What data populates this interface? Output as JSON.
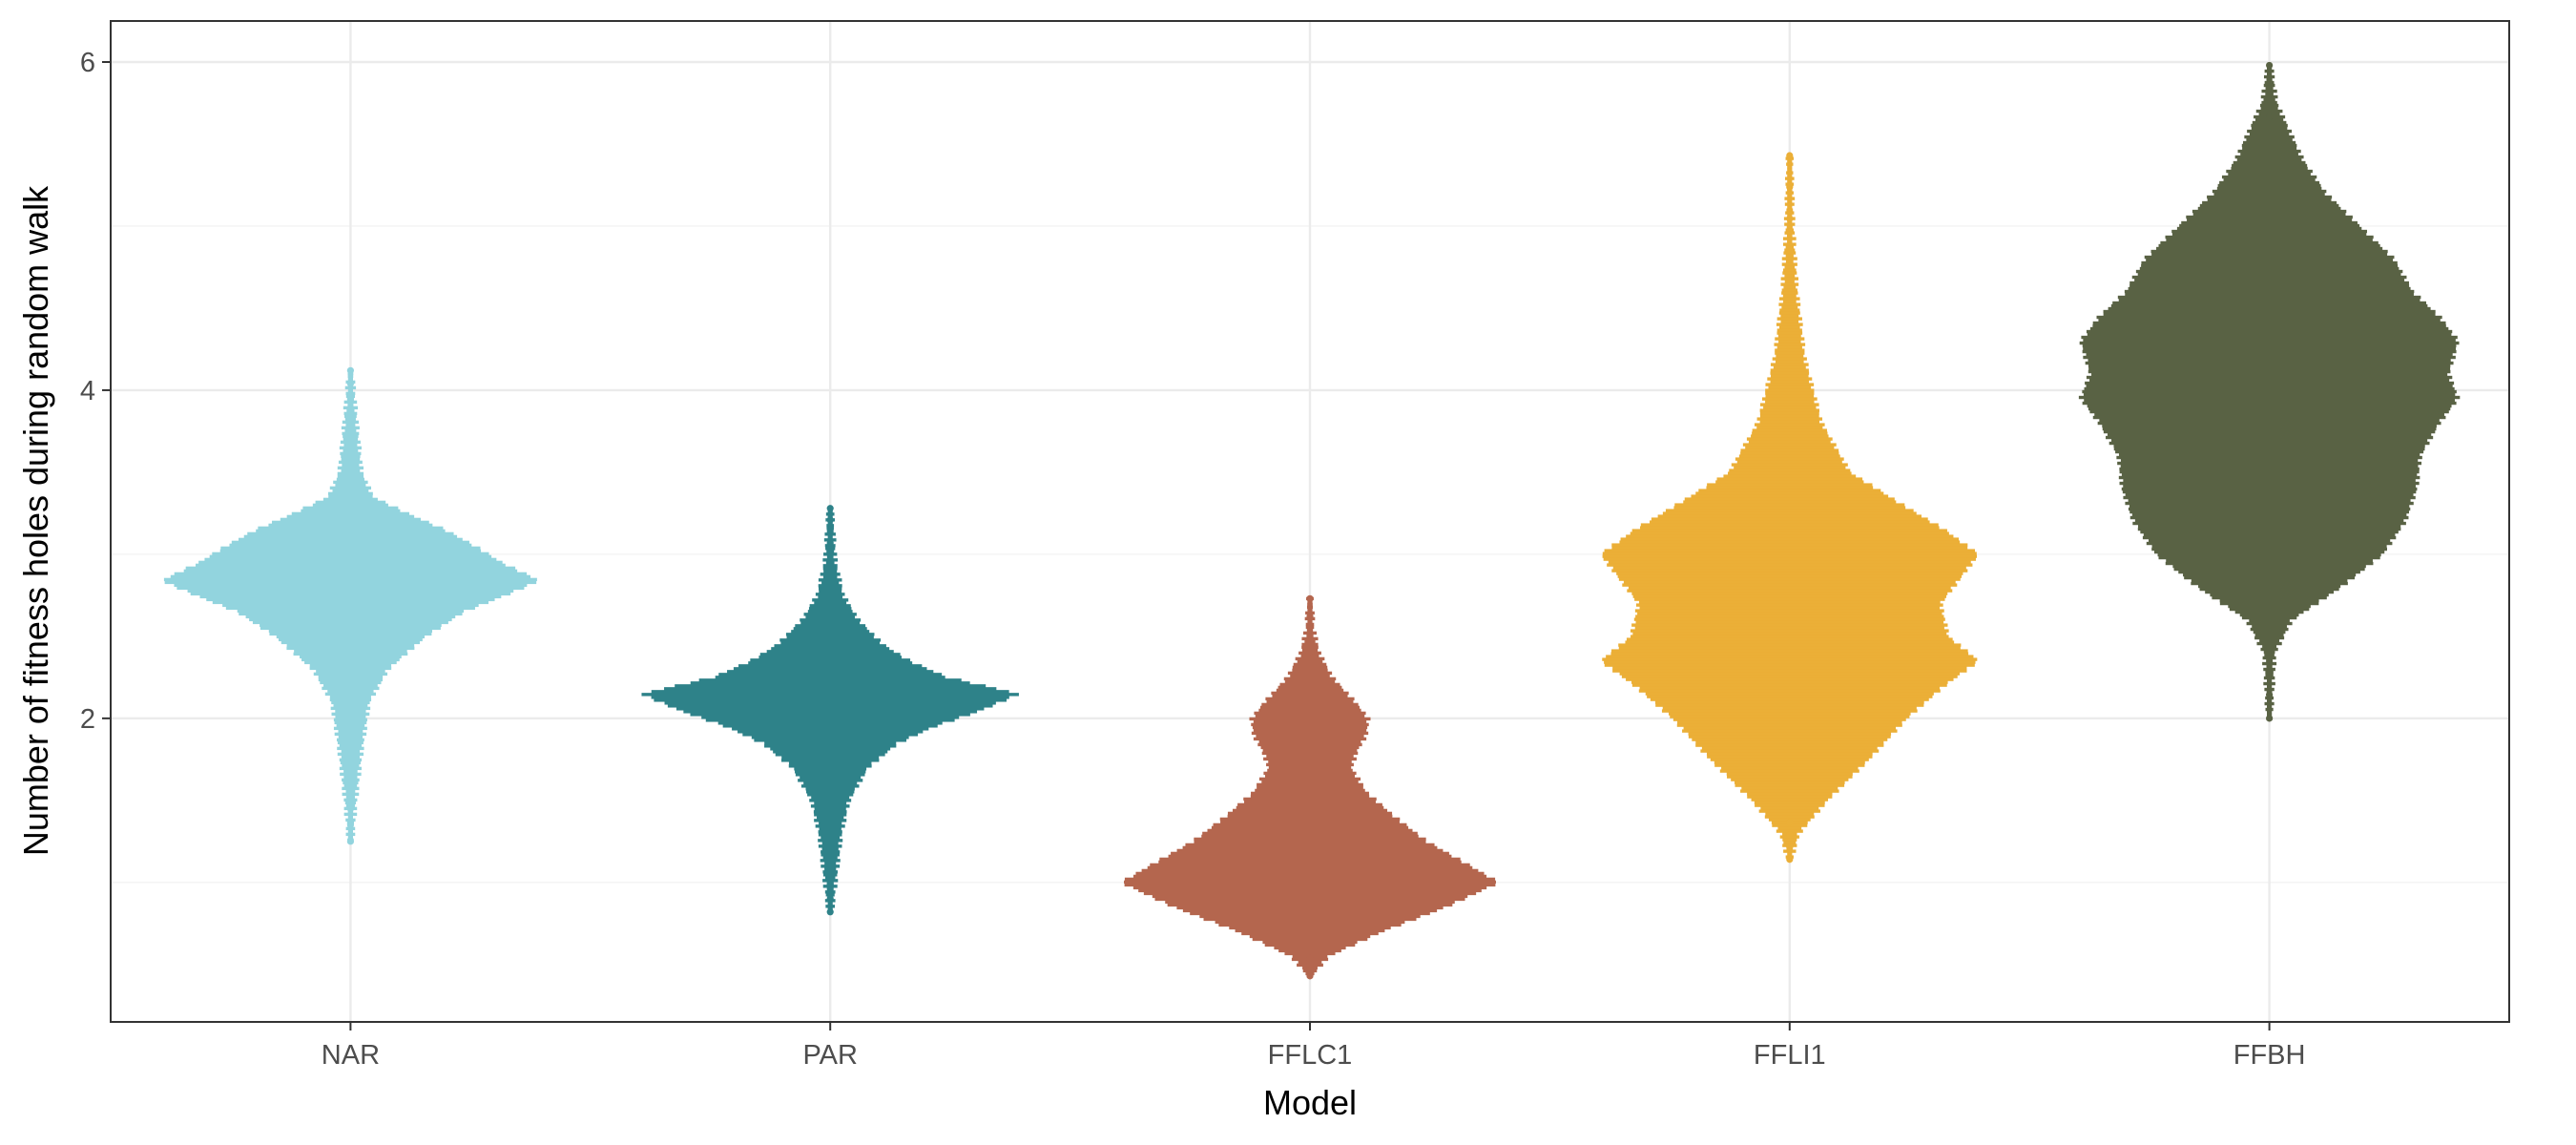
{
  "chart_data": {
    "type": "beeswarm",
    "xlabel": "Model",
    "ylabel": "Number of fitness holes during random walk",
    "categories": [
      "NAR",
      "PAR",
      "FFLC1",
      "FFLI1",
      "FFBH"
    ],
    "y_ticks": [
      2,
      4,
      6
    ],
    "ylim": [
      0.15,
      6.25
    ],
    "grid": true,
    "legend": "none",
    "series": [
      {
        "category": "NAR",
        "color": "#92d4de",
        "min": 1.25,
        "max": 4.12,
        "mode": 2.84,
        "profile": [
          [
            1.25,
            0.01
          ],
          [
            1.5,
            0.03
          ],
          [
            1.8,
            0.06
          ],
          [
            2.1,
            0.1
          ],
          [
            2.3,
            0.2
          ],
          [
            2.5,
            0.4
          ],
          [
            2.65,
            0.6
          ],
          [
            2.75,
            0.82
          ],
          [
            2.84,
            1.0
          ],
          [
            2.95,
            0.8
          ],
          [
            3.05,
            0.66
          ],
          [
            3.15,
            0.5
          ],
          [
            3.25,
            0.3
          ],
          [
            3.35,
            0.12
          ],
          [
            3.5,
            0.06
          ],
          [
            3.8,
            0.035
          ],
          [
            4.12,
            0.01
          ]
        ]
      },
      {
        "category": "PAR",
        "color": "#2e8289",
        "min": 0.82,
        "max": 3.28,
        "mode": 2.15,
        "profile": [
          [
            0.82,
            0.01
          ],
          [
            1.0,
            0.03
          ],
          [
            1.3,
            0.06
          ],
          [
            1.5,
            0.1
          ],
          [
            1.7,
            0.2
          ],
          [
            1.85,
            0.36
          ],
          [
            1.95,
            0.55
          ],
          [
            2.05,
            0.8
          ],
          [
            2.15,
            1.0
          ],
          [
            2.25,
            0.62
          ],
          [
            2.35,
            0.42
          ],
          [
            2.45,
            0.28
          ],
          [
            2.6,
            0.15
          ],
          [
            2.75,
            0.07
          ],
          [
            2.95,
            0.03
          ],
          [
            3.28,
            0.01
          ]
        ]
      },
      {
        "category": "FFLC1",
        "color": "#b4664e",
        "min": 0.43,
        "max": 2.73,
        "mode": 1.0,
        "profile": [
          [
            0.43,
            0.01
          ],
          [
            0.55,
            0.1
          ],
          [
            0.7,
            0.38
          ],
          [
            0.85,
            0.72
          ],
          [
            1.0,
            1.0
          ],
          [
            1.12,
            0.82
          ],
          [
            1.25,
            0.62
          ],
          [
            1.4,
            0.45
          ],
          [
            1.55,
            0.3
          ],
          [
            1.7,
            0.22
          ],
          [
            1.8,
            0.25
          ],
          [
            1.9,
            0.3
          ],
          [
            2.0,
            0.31
          ],
          [
            2.1,
            0.24
          ],
          [
            2.25,
            0.12
          ],
          [
            2.4,
            0.05
          ],
          [
            2.55,
            0.02
          ],
          [
            2.73,
            0.01
          ]
        ]
      },
      {
        "category": "FFLI1",
        "color": "#ebaf37",
        "min": 1.14,
        "max": 5.43,
        "mode": 2.35,
        "profile": [
          [
            1.14,
            0.01
          ],
          [
            1.3,
            0.05
          ],
          [
            1.5,
            0.2
          ],
          [
            1.75,
            0.42
          ],
          [
            2.0,
            0.62
          ],
          [
            2.2,
            0.82
          ],
          [
            2.35,
            1.0
          ],
          [
            2.5,
            0.84
          ],
          [
            2.7,
            0.8
          ],
          [
            2.85,
            0.9
          ],
          [
            3.0,
            1.0
          ],
          [
            3.15,
            0.82
          ],
          [
            3.3,
            0.6
          ],
          [
            3.5,
            0.32
          ],
          [
            3.8,
            0.17
          ],
          [
            4.2,
            0.08
          ],
          [
            4.6,
            0.04
          ],
          [
            5.0,
            0.02
          ],
          [
            5.43,
            0.01
          ]
        ]
      },
      {
        "category": "FFBH",
        "color": "#596244",
        "min": 2.0,
        "max": 5.98,
        "mode": 4.3,
        "profile": [
          [
            2.0,
            0.01
          ],
          [
            2.4,
            0.03
          ],
          [
            2.6,
            0.12
          ],
          [
            2.8,
            0.38
          ],
          [
            3.0,
            0.6
          ],
          [
            3.2,
            0.72
          ],
          [
            3.4,
            0.78
          ],
          [
            3.6,
            0.8
          ],
          [
            3.8,
            0.9
          ],
          [
            3.95,
            1.0
          ],
          [
            4.1,
            0.95
          ],
          [
            4.3,
            1.0
          ],
          [
            4.45,
            0.9
          ],
          [
            4.6,
            0.76
          ],
          [
            4.8,
            0.66
          ],
          [
            5.0,
            0.48
          ],
          [
            5.2,
            0.3
          ],
          [
            5.4,
            0.18
          ],
          [
            5.6,
            0.1
          ],
          [
            5.75,
            0.04
          ],
          [
            5.98,
            0.01
          ]
        ]
      }
    ]
  }
}
